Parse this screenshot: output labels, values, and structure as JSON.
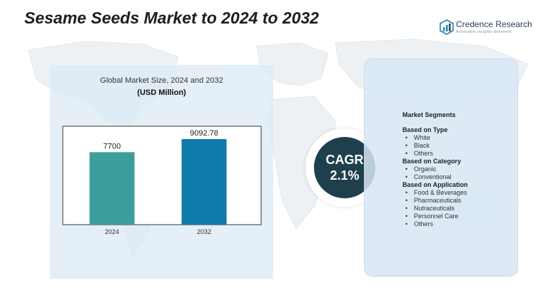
{
  "header": {
    "title": "Sesame Seeds Market to 2024 to 2032"
  },
  "logo": {
    "name": "Credence Research",
    "tagline": "Actionable insights delivered"
  },
  "chart": {
    "title": "Global Market Size, 2024 and 2032",
    "unit": "(USD Million)"
  },
  "chart_data": {
    "type": "bar",
    "categories": [
      "2024",
      "2032"
    ],
    "values": [
      7700,
      9092.78
    ],
    "value_labels": [
      "7700",
      "9092.78"
    ],
    "title": "Global Market Size, 2024 and 2032",
    "ylabel": "(USD Million)",
    "xlabel": "",
    "bar_colors": [
      "#3a9e9a",
      "#0e7bab"
    ],
    "grid": false
  },
  "cagr": {
    "label": "CAGR",
    "value": "2.1%"
  },
  "segments": {
    "heading": "Market Segments",
    "groups": [
      {
        "title": "Based on Type",
        "items": [
          "White",
          "Black",
          "Others"
        ]
      },
      {
        "title": "Based on Category",
        "items": [
          "Organic",
          "Conventional"
        ]
      },
      {
        "title": "Based on Application",
        "items": [
          "Food & Beverages",
          "Pharmaceuticals",
          "Nutraceuticals",
          "Personnel Care",
          "Others"
        ]
      }
    ]
  },
  "colors": {
    "bar_2024": "#3a9e9a",
    "bar_2032": "#0e7bab",
    "cagr_circle": "#1f3f4d",
    "panel_bg": "#dceaf5"
  }
}
